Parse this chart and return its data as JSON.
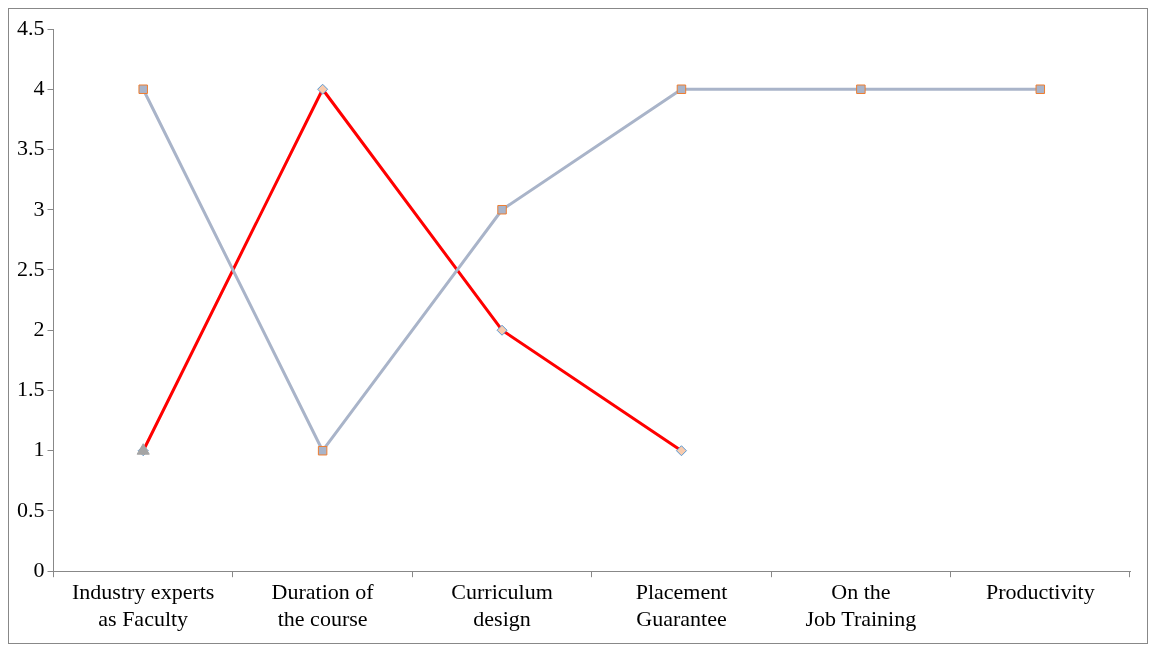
{
  "chart_data": {
    "type": "line",
    "categories": [
      "Industry experts as Faculty",
      "Duration of the course",
      "Curriculum design",
      "Placement Guarantee",
      "On the Job Training",
      "Productivity"
    ],
    "series": [
      {
        "color": "#ff0000",
        "marker": "diamond",
        "values": [
          1,
          4,
          2,
          1,
          null,
          null
        ]
      },
      {
        "color": "#a9b4c9",
        "marker": "square",
        "values": [
          4,
          1,
          3,
          4,
          4,
          4
        ]
      },
      {
        "type": "scatter",
        "color": "#a5a5a5",
        "marker": "triangle",
        "values": [
          1,
          null,
          null,
          null,
          null,
          null
        ]
      }
    ],
    "ylim": [
      0,
      4.5
    ],
    "yticks": [
      0,
      0.5,
      1,
      1.5,
      2,
      2.5,
      3,
      3.5,
      4,
      4.5
    ],
    "grid": false,
    "legend": false
  }
}
